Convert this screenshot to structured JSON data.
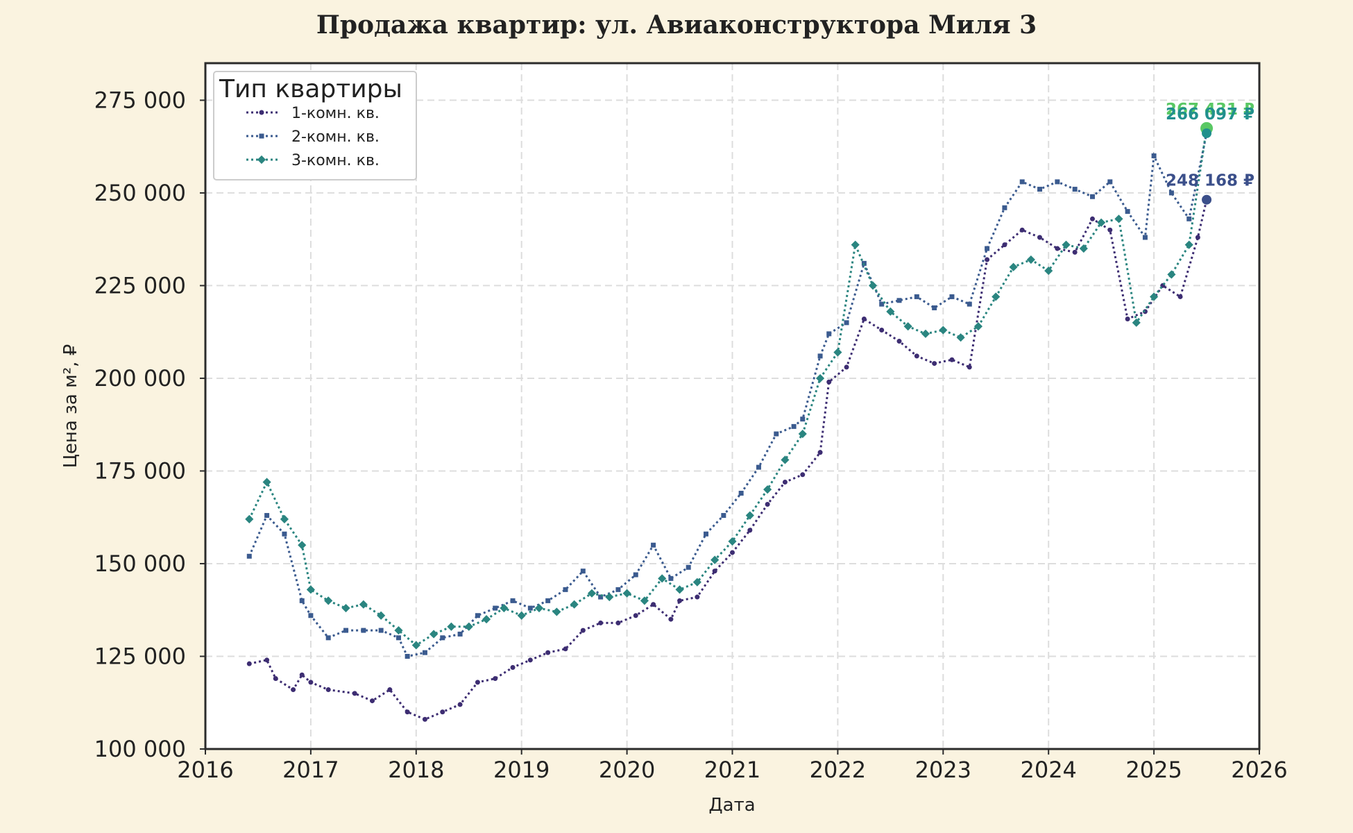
{
  "chart_data": {
    "type": "line",
    "title": "Продажа квартир: ул. Авиаконструктора Миля 3",
    "xlabel": "Дата",
    "ylabel": "Цена за м², ₽",
    "xlim": [
      2016,
      2026
    ],
    "ylim": [
      100000,
      285000
    ],
    "x_ticks": [
      "2016",
      "2017",
      "2018",
      "2019",
      "2020",
      "2021",
      "2022",
      "2023",
      "2024",
      "2025",
      "2026"
    ],
    "y_ticks": [
      "100 000",
      "125 000",
      "150 000",
      "175 000",
      "200 000",
      "225 000",
      "250 000",
      "275 000"
    ],
    "grid": true,
    "legend": {
      "title": "Тип квартиры",
      "position": "top-left"
    },
    "series": [
      {
        "name": "1-комн. кв.",
        "color": "#3d2d72",
        "marker": "circle",
        "end_label": "248 168 ₽",
        "end_value": 248168,
        "x": [
          "2016-06",
          "2016-08",
          "2016-09",
          "2016-11",
          "2016-12",
          "2017-01",
          "2017-03",
          "2017-06",
          "2017-08",
          "2017-10",
          "2017-12",
          "2018-02",
          "2018-04",
          "2018-06",
          "2018-08",
          "2018-10",
          "2018-12",
          "2019-02",
          "2019-04",
          "2019-06",
          "2019-08",
          "2019-10",
          "2019-12",
          "2020-02",
          "2020-04",
          "2020-06",
          "2020-07",
          "2020-09",
          "2020-11",
          "2021-01",
          "2021-03",
          "2021-05",
          "2021-07",
          "2021-09",
          "2021-11",
          "2021-12",
          "2022-02",
          "2022-04",
          "2022-06",
          "2022-08",
          "2022-10",
          "2022-12",
          "2023-02",
          "2023-04",
          "2023-06",
          "2023-08",
          "2023-10",
          "2023-12",
          "2024-02",
          "2024-04",
          "2024-06",
          "2024-08",
          "2024-10",
          "2024-12",
          "2025-02",
          "2025-04",
          "2025-06",
          "2025-07"
        ],
        "y": [
          123000,
          124000,
          119000,
          116000,
          120000,
          118000,
          116000,
          115000,
          113000,
          116000,
          110000,
          108000,
          110000,
          112000,
          118000,
          119000,
          122000,
          124000,
          126000,
          127000,
          132000,
          134000,
          134000,
          136000,
          139000,
          135000,
          140000,
          141000,
          148000,
          153000,
          159000,
          166000,
          172000,
          174000,
          180000,
          199000,
          203000,
          216000,
          213000,
          210000,
          206000,
          204000,
          205000,
          203000,
          232000,
          236000,
          240000,
          238000,
          235000,
          234000,
          243000,
          240000,
          216000,
          218000,
          225000,
          222000,
          238000,
          248168
        ]
      },
      {
        "name": "2-комн. кв.",
        "color": "#3b5b8f",
        "marker": "square",
        "end_label": "266 097 ₽",
        "end_value": 266097,
        "x": [
          "2016-06",
          "2016-08",
          "2016-10",
          "2016-12",
          "2017-01",
          "2017-03",
          "2017-05",
          "2017-07",
          "2017-09",
          "2017-11",
          "2017-12",
          "2018-02",
          "2018-04",
          "2018-06",
          "2018-08",
          "2018-10",
          "2018-12",
          "2019-02",
          "2019-04",
          "2019-06",
          "2019-08",
          "2019-10",
          "2019-12",
          "2020-02",
          "2020-04",
          "2020-06",
          "2020-08",
          "2020-10",
          "2020-12",
          "2021-02",
          "2021-04",
          "2021-06",
          "2021-08",
          "2021-09",
          "2021-11",
          "2021-12",
          "2022-02",
          "2022-04",
          "2022-06",
          "2022-08",
          "2022-10",
          "2022-12",
          "2023-02",
          "2023-04",
          "2023-06",
          "2023-08",
          "2023-10",
          "2023-12",
          "2024-02",
          "2024-04",
          "2024-06",
          "2024-08",
          "2024-10",
          "2024-12",
          "2025-01",
          "2025-03",
          "2025-05",
          "2025-07"
        ],
        "y": [
          152000,
          163000,
          158000,
          140000,
          136000,
          130000,
          132000,
          132000,
          132000,
          130000,
          125000,
          126000,
          130000,
          131000,
          136000,
          138000,
          140000,
          138000,
          140000,
          143000,
          148000,
          141000,
          143000,
          147000,
          155000,
          146000,
          149000,
          158000,
          163000,
          169000,
          176000,
          185000,
          187000,
          189000,
          206000,
          212000,
          215000,
          231000,
          220000,
          221000,
          222000,
          219000,
          222000,
          220000,
          235000,
          246000,
          253000,
          251000,
          253000,
          251000,
          249000,
          253000,
          245000,
          238000,
          260000,
          250000,
          243000,
          266097
        ]
      },
      {
        "name": "3-комн. кв.",
        "color": "#2a8580",
        "marker": "diamond",
        "end_label": "267 431 ₽",
        "end_value": 267431,
        "x": [
          "2016-06",
          "2016-08",
          "2016-10",
          "2016-12",
          "2017-01",
          "2017-03",
          "2017-05",
          "2017-07",
          "2017-09",
          "2017-11",
          "2018-01",
          "2018-03",
          "2018-05",
          "2018-07",
          "2018-09",
          "2018-11",
          "2019-01",
          "2019-03",
          "2019-05",
          "2019-07",
          "2019-09",
          "2019-11",
          "2020-01",
          "2020-03",
          "2020-05",
          "2020-07",
          "2020-09",
          "2020-11",
          "2021-01",
          "2021-03",
          "2021-05",
          "2021-07",
          "2021-09",
          "2021-11",
          "2022-01",
          "2022-03",
          "2022-05",
          "2022-07",
          "2022-09",
          "2022-11",
          "2023-01",
          "2023-03",
          "2023-05",
          "2023-07",
          "2023-09",
          "2023-11",
          "2024-01",
          "2024-03",
          "2024-05",
          "2024-07",
          "2024-09",
          "2024-11",
          "2025-01",
          "2025-03",
          "2025-05",
          "2025-07"
        ],
        "y": [
          162000,
          172000,
          162000,
          155000,
          143000,
          140000,
          138000,
          139000,
          136000,
          132000,
          128000,
          131000,
          133000,
          133000,
          135000,
          138000,
          136000,
          138000,
          137000,
          139000,
          142000,
          141000,
          142000,
          140000,
          146000,
          143000,
          145000,
          151000,
          156000,
          163000,
          170000,
          178000,
          185000,
          200000,
          207000,
          236000,
          225000,
          218000,
          214000,
          212000,
          213000,
          211000,
          214000,
          222000,
          230000,
          232000,
          229000,
          236000,
          235000,
          242000,
          243000,
          215000,
          222000,
          228000,
          236000,
          267431
        ]
      }
    ]
  }
}
